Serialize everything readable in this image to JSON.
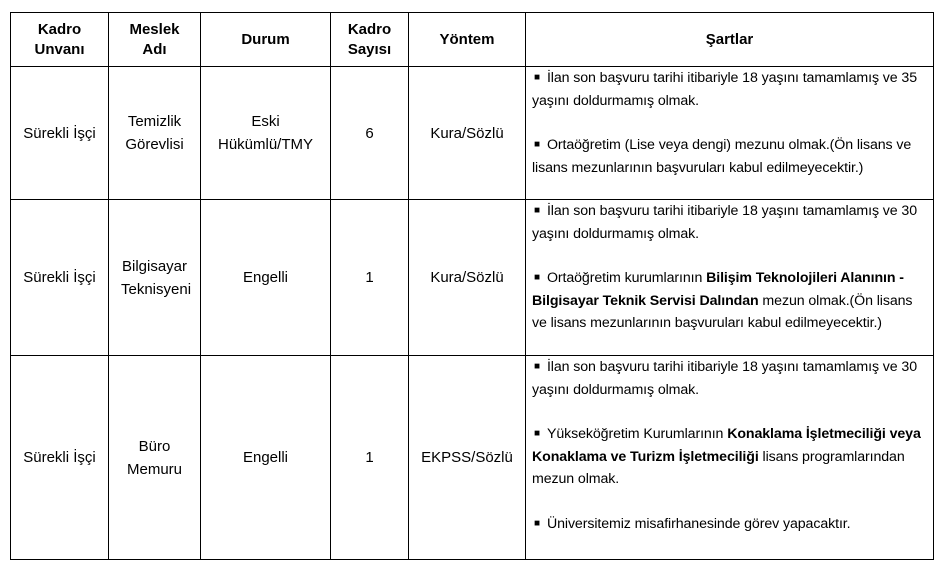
{
  "headers": [
    "Kadro Unvanı",
    "Meslek Adı",
    "Durum",
    "Kadro Sayısı",
    "Yöntem",
    "Şartlar"
  ],
  "rows": [
    {
      "unvan": "Sürekli İşçi",
      "meslek": "Temizlik Görevlisi",
      "durum": "Eski Hükümlü/TMY",
      "sayi": "6",
      "yontem": "Kura/Sözlü",
      "sartlar": [
        [
          {
            "t": "İlan son başvuru tarihi itibariyle 18 yaşını tamamlamış ve 35 yaşını doldurmamış olmak.",
            "b": false
          }
        ],
        [
          {
            "t": "Ortaöğretim (Lise veya dengi) mezunu olmak.(Ön lisans ve lisans mezunlarının başvuruları kabul edilmeyecektir.)",
            "b": false
          }
        ]
      ]
    },
    {
      "unvan": "Sürekli İşçi",
      "meslek": "Bilgisayar Teknisyeni",
      "durum": "Engelli",
      "sayi": "1",
      "yontem": "Kura/Sözlü",
      "sartlar": [
        [
          {
            "t": "İlan son başvuru tarihi itibariyle 18 yaşını tamamlamış ve 30 yaşını doldurmamış olmak.",
            "b": false
          }
        ],
        [
          {
            "t": "Ortaöğretim kurumlarının ",
            "b": false
          },
          {
            "t": "Bilişim Teknolojileri Alanının - Bilgisayar Teknik Servisi Dalından",
            "b": true
          },
          {
            "t": " mezun olmak.(Ön lisans ve lisans mezunlarının başvuruları kabul edilmeyecektir.)",
            "b": false
          }
        ]
      ]
    },
    {
      "unvan": "Sürekli İşçi",
      "meslek": "Büro Memuru",
      "durum": "Engelli",
      "sayi": "1",
      "yontem": "EKPSS/Sözlü",
      "sartlar": [
        [
          {
            "t": "İlan son başvuru tarihi itibariyle 18 yaşını tamamlamış ve 30 yaşını doldurmamış olmak.",
            "b": false
          }
        ],
        [
          {
            "t": "Yükseköğretim Kurumlarının ",
            "b": false
          },
          {
            "t": "Konaklama İşletmeciliği veya Konaklama ve Turizm İşletmeciliği",
            "b": true
          },
          {
            "t": " lisans programlarından mezun olmak.",
            "b": false
          }
        ],
        [
          {
            "t": "Üniversitemiz misafirhanesinde görev yapacaktır.",
            "b": false
          }
        ]
      ]
    }
  ]
}
